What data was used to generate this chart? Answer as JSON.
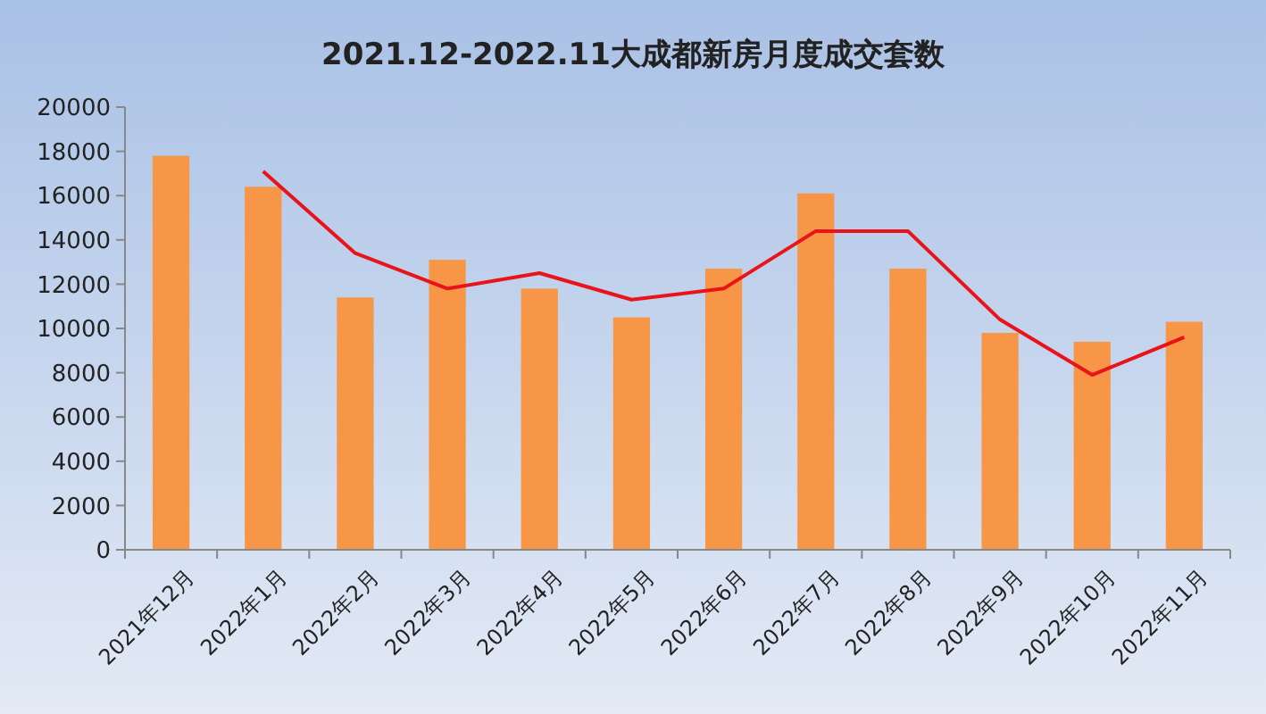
{
  "chart_data": {
    "type": "bar",
    "title": "2021.12-2022.11大成都新房月度成交套数",
    "categories": [
      "2021年12月",
      "2022年1月",
      "2022年2月",
      "2022年3月",
      "2022年4月",
      "2022年5月",
      "2022年6月",
      "2022年7月",
      "2022年8月",
      "2022年9月",
      "2022年10月",
      "2022年11月"
    ],
    "series": [
      {
        "color": "#f79646",
        "values": [
          17800,
          16400,
          11400,
          13100,
          11800,
          10500,
          12700,
          16100,
          12700,
          9800,
          9400,
          10300
        ]
      },
      {
        "type": "line",
        "color": "#e8141a",
        "values": [
          null,
          17100,
          13400,
          11800,
          12500,
          11300,
          11800,
          14400,
          14400,
          10400,
          7900,
          9600
        ]
      }
    ],
    "ylim": [
      0,
      20000
    ],
    "yticks": [
      0,
      2000,
      4000,
      6000,
      8000,
      10000,
      12000,
      14000,
      16000,
      18000,
      20000
    ],
    "grid": false
  }
}
